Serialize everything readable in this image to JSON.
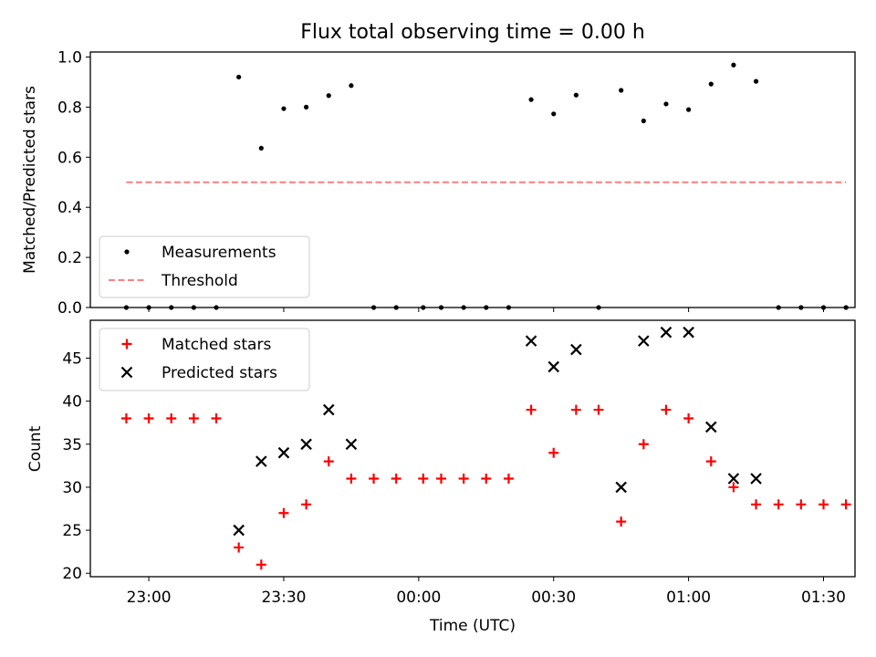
{
  "chart_data": [
    {
      "panel": "top",
      "type": "scatter",
      "title": "Flux total observing time = 0.00 h",
      "xlabel": "",
      "ylabel": "Matched/Predicted stars",
      "ylim": [
        0.0,
        1.02
      ],
      "yticks": [
        "0.0",
        "0.2",
        "0.4",
        "0.6",
        "0.8",
        "1.0"
      ],
      "xlim": [
        "22:47",
        "01:37"
      ],
      "xticks": [
        "23:00",
        "23:30",
        "00:00",
        "00:30",
        "01:00",
        "01:30"
      ],
      "legend_placement": "lower-left",
      "legend": [
        "Measurements",
        "Threshold"
      ],
      "series": [
        {
          "name": "Measurements",
          "color": "#000000",
          "marker": "dot",
          "points": [
            [
              "22:55",
              0.0
            ],
            [
              "23:00",
              0.0
            ],
            [
              "23:05",
              0.0
            ],
            [
              "23:10",
              0.0
            ],
            [
              "23:15",
              0.0
            ],
            [
              "23:20",
              0.92
            ],
            [
              "23:25",
              0.636
            ],
            [
              "23:30",
              0.794
            ],
            [
              "23:35",
              0.8
            ],
            [
              "23:40",
              0.846
            ],
            [
              "23:45",
              0.886
            ],
            [
              "23:50",
              0.0
            ],
            [
              "23:55",
              0.0
            ],
            [
              "00:01",
              0.0
            ],
            [
              "00:05",
              0.0
            ],
            [
              "00:10",
              0.0
            ],
            [
              "00:15",
              0.0
            ],
            [
              "00:20",
              0.0
            ],
            [
              "00:25",
              0.83
            ],
            [
              "00:30",
              0.773
            ],
            [
              "00:35",
              0.848
            ],
            [
              "00:40",
              0.0
            ],
            [
              "00:45",
              0.867
            ],
            [
              "00:50",
              0.745
            ],
            [
              "00:55",
              0.8125
            ],
            [
              "01:00",
              0.79
            ],
            [
              "01:05",
              0.892
            ],
            [
              "01:10",
              0.968
            ],
            [
              "01:15",
              0.903
            ],
            [
              "01:20",
              0.0
            ],
            [
              "01:25",
              0.0
            ],
            [
              "01:30",
              0.0
            ],
            [
              "01:35",
              0.0
            ]
          ]
        },
        {
          "name": "Threshold",
          "color": "#ff7f7f",
          "style": "dashed",
          "points": [
            [
              "22:55",
              0.5
            ],
            [
              "01:35",
              0.5
            ]
          ]
        }
      ]
    },
    {
      "panel": "bottom",
      "type": "scatter",
      "title": "",
      "xlabel": "Time (UTC)",
      "ylabel": "Count",
      "ylim": [
        19.6,
        49.4
      ],
      "yticks": [
        "20",
        "25",
        "30",
        "35",
        "40",
        "45"
      ],
      "xlim": [
        "22:47",
        "01:37"
      ],
      "xticks": [
        "23:00",
        "23:30",
        "00:00",
        "00:30",
        "01:00",
        "01:30"
      ],
      "legend_placement": "upper-left",
      "legend": [
        "Matched stars",
        "Predicted stars"
      ],
      "series": [
        {
          "name": "Matched stars",
          "color": "#ff0000",
          "marker": "plus",
          "points": [
            [
              "22:55",
              38
            ],
            [
              "23:00",
              38
            ],
            [
              "23:05",
              38
            ],
            [
              "23:10",
              38
            ],
            [
              "23:15",
              38
            ],
            [
              "23:20",
              23
            ],
            [
              "23:25",
              21
            ],
            [
              "23:30",
              27
            ],
            [
              "23:35",
              28
            ],
            [
              "23:40",
              33
            ],
            [
              "23:45",
              31
            ],
            [
              "23:50",
              31
            ],
            [
              "23:55",
              31
            ],
            [
              "00:01",
              31
            ],
            [
              "00:05",
              31
            ],
            [
              "00:10",
              31
            ],
            [
              "00:15",
              31
            ],
            [
              "00:20",
              31
            ],
            [
              "00:25",
              39
            ],
            [
              "00:30",
              34
            ],
            [
              "00:35",
              39
            ],
            [
              "00:40",
              39
            ],
            [
              "00:45",
              26
            ],
            [
              "00:50",
              35
            ],
            [
              "00:55",
              39
            ],
            [
              "01:00",
              38
            ],
            [
              "01:05",
              33
            ],
            [
              "01:10",
              30
            ],
            [
              "01:15",
              28
            ],
            [
              "01:20",
              28
            ],
            [
              "01:25",
              28
            ],
            [
              "01:30",
              28
            ],
            [
              "01:35",
              28
            ]
          ]
        },
        {
          "name": "Predicted stars",
          "color": "#000000",
          "marker": "x",
          "points": [
            [
              "23:20",
              25
            ],
            [
              "23:25",
              33
            ],
            [
              "23:30",
              34
            ],
            [
              "23:35",
              35
            ],
            [
              "23:40",
              39
            ],
            [
              "23:45",
              35
            ],
            [
              "00:25",
              47
            ],
            [
              "00:30",
              44
            ],
            [
              "00:35",
              46
            ],
            [
              "00:45",
              30
            ],
            [
              "00:50",
              47
            ],
            [
              "00:55",
              48
            ],
            [
              "01:00",
              48
            ],
            [
              "01:05",
              37
            ],
            [
              "01:10",
              31
            ],
            [
              "01:15",
              31
            ]
          ]
        }
      ]
    }
  ]
}
